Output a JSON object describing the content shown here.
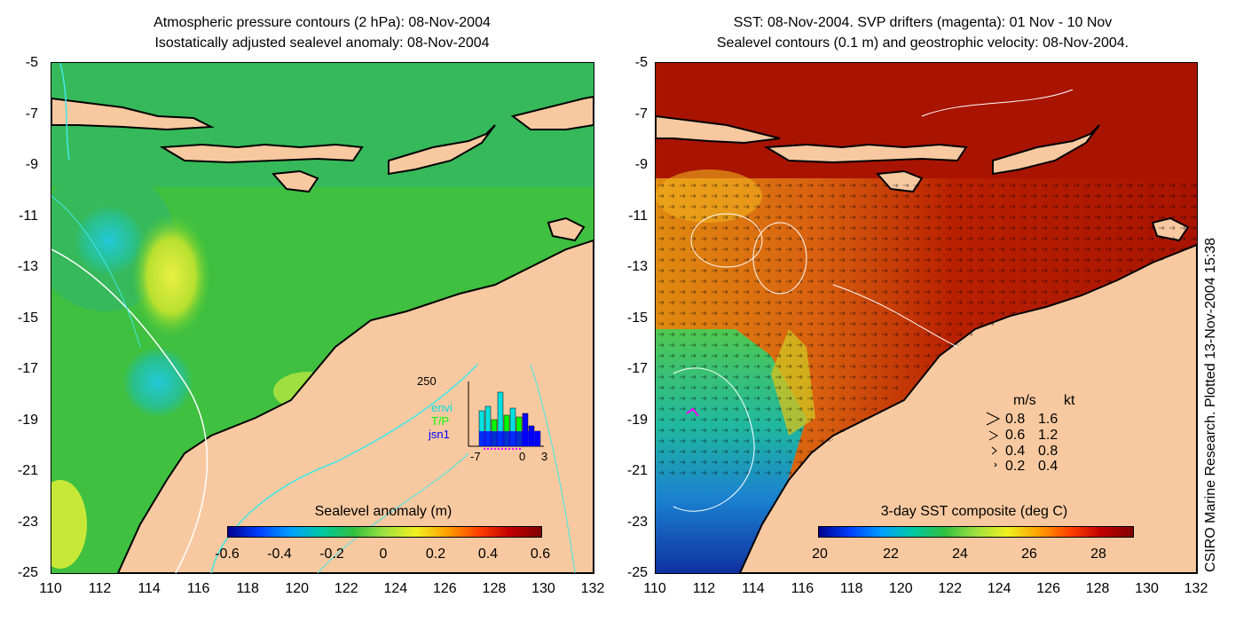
{
  "left_panel": {
    "title_line1": "Atmospheric pressure contours (2 hPa): 08-Nov-2004",
    "title_line2": "Isostatically adjusted sealevel anomaly: 08-Nov-2004",
    "colorbar_label": "Sealevel anomaly (m)",
    "colorbar_ticks": [
      "-0.6",
      "-0.4",
      "-0.2",
      "0",
      "0.2",
      "0.4",
      "0.6"
    ],
    "inset": {
      "ymax_label": "250",
      "x_ticks": [
        "-7",
        "0",
        "3"
      ],
      "legend": [
        {
          "label": "envi",
          "color": "#00e0e0"
        },
        {
          "label": "T/P",
          "color": "#00ff00"
        },
        {
          "label": "jsn1",
          "color": "#0000ff"
        }
      ]
    }
  },
  "right_panel": {
    "title_line1": "SST: 08-Nov-2004. SVP drifters (magenta): 01 Nov - 10 Nov",
    "title_line2": "Sealevel contours (0.1 m) and geostrophic velocity: 08-Nov-2004.",
    "colorbar_label": "3-day SST composite (deg C)",
    "colorbar_ticks": [
      "20",
      "22",
      "24",
      "26",
      "28"
    ],
    "speed_legend": {
      "header_ms": "m/s",
      "header_kt": "kt",
      "rows": [
        {
          "ms": "0.8",
          "kt": "1.6"
        },
        {
          "ms": "0.6",
          "kt": "1.2"
        },
        {
          "ms": "0.4",
          "kt": "0.8"
        },
        {
          "ms": "0.2",
          "kt": "0.4"
        }
      ]
    }
  },
  "axes": {
    "y_ticks": [
      "-5",
      "-7",
      "-9",
      "-11",
      "-13",
      "-15",
      "-17",
      "-19",
      "-21",
      "-23",
      "-25"
    ],
    "x_ticks": [
      "110",
      "112",
      "114",
      "116",
      "118",
      "120",
      "122",
      "124",
      "126",
      "128",
      "130",
      "132"
    ]
  },
  "side_note": "CSIRO Marine Research. Plotted 13-Nov-2004 15:38",
  "colors": {
    "land": "#f8c9a0",
    "sea_anomaly_base": "#22c44a",
    "sst_warm": "#b01a00",
    "sst_cool": "#1a7fd0"
  }
}
